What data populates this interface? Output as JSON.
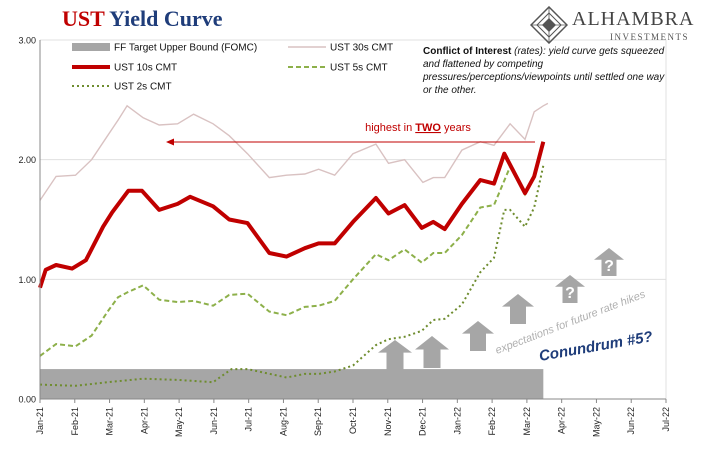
{
  "header": {
    "title_prefix": "UST",
    "title_rest": "Yield Curve",
    "logo_name": "ALHAMBRA",
    "logo_sub": "INVESTMENTS"
  },
  "annotation": {
    "lead": "Conflict of Interest",
    "paren": " (rates)",
    "body": ": yield curve gets squeezed and flattened by competing pressures/perceptions/viewpoints until settled one way or the other."
  },
  "colors": {
    "ff": "#a6a6a6",
    "ust30": "#d9c2c2",
    "ust10": "#c00000",
    "ust5": "#8db04a",
    "ust2": "#6e8c2e",
    "arrow_gray": "#a6a6a6",
    "red_annot": "#c00000",
    "navy": "#1f3d7a"
  },
  "chart_data": {
    "type": "line",
    "x_tick_labels": [
      "Jan-21",
      "Feb-21",
      "Mar-21",
      "Apr-21",
      "May-21",
      "Jun-21",
      "Jul-21",
      "Aug-21",
      "Sep-21",
      "Oct-21",
      "Nov-21",
      "Dec-21",
      "Jan-22",
      "Feb-22",
      "Mar-22",
      "Apr-22",
      "May-22",
      "Jun-22",
      "Jul-22"
    ],
    "y_tick_labels": [
      "0.00",
      "1.00",
      "2.00",
      "3.00"
    ],
    "ylim": [
      0,
      3
    ],
    "xlim": [
      "2021-01-01",
      "2022-07-01"
    ],
    "grid": true,
    "legend_position": "top-left",
    "series": [
      {
        "name": "FF Target Upper Bound (FOMC)",
        "style": "area",
        "points": [
          [
            "2021-01-01",
            0.25
          ],
          [
            "2022-03-16",
            0.25
          ]
        ]
      },
      {
        "name": "UST 30s CMT",
        "style": "line-thin",
        "points": [
          [
            "2021-01-01",
            1.66
          ],
          [
            "2021-01-15",
            1.86
          ],
          [
            "2021-02-01",
            1.87
          ],
          [
            "2021-02-15",
            2.0
          ],
          [
            "2021-03-01",
            2.2
          ],
          [
            "2021-03-10",
            2.33
          ],
          [
            "2021-03-18",
            2.45
          ],
          [
            "2021-04-01",
            2.35
          ],
          [
            "2021-04-15",
            2.29
          ],
          [
            "2021-05-01",
            2.3
          ],
          [
            "2021-05-15",
            2.38
          ],
          [
            "2021-06-01",
            2.3
          ],
          [
            "2021-06-15",
            2.2
          ],
          [
            "2021-07-01",
            2.05
          ],
          [
            "2021-07-20",
            1.85
          ],
          [
            "2021-08-04",
            1.87
          ],
          [
            "2021-08-20",
            1.88
          ],
          [
            "2021-09-01",
            1.92
          ],
          [
            "2021-09-15",
            1.87
          ],
          [
            "2021-10-01",
            2.05
          ],
          [
            "2021-10-21",
            2.13
          ],
          [
            "2021-11-01",
            1.97
          ],
          [
            "2021-11-15",
            2.0
          ],
          [
            "2021-12-01",
            1.81
          ],
          [
            "2021-12-10",
            1.85
          ],
          [
            "2021-12-20",
            1.85
          ],
          [
            "2022-01-04",
            2.08
          ],
          [
            "2022-01-20",
            2.15
          ],
          [
            "2022-02-01",
            2.12
          ],
          [
            "2022-02-15",
            2.3
          ],
          [
            "2022-02-28",
            2.17
          ],
          [
            "2022-03-08",
            2.4
          ],
          [
            "2022-03-16",
            2.45
          ],
          [
            "2022-03-20",
            2.47
          ]
        ]
      },
      {
        "name": "UST 10s CMT",
        "style": "line-thick",
        "points": [
          [
            "2021-01-01",
            0.93
          ],
          [
            "2021-01-06",
            1.08
          ],
          [
            "2021-01-15",
            1.12
          ],
          [
            "2021-01-29",
            1.09
          ],
          [
            "2021-02-10",
            1.16
          ],
          [
            "2021-02-25",
            1.44
          ],
          [
            "2021-03-05",
            1.56
          ],
          [
            "2021-03-19",
            1.74
          ],
          [
            "2021-03-31",
            1.74
          ],
          [
            "2021-04-15",
            1.58
          ],
          [
            "2021-05-01",
            1.63
          ],
          [
            "2021-05-12",
            1.69
          ],
          [
            "2021-06-01",
            1.61
          ],
          [
            "2021-06-15",
            1.5
          ],
          [
            "2021-07-01",
            1.47
          ],
          [
            "2021-07-20",
            1.22
          ],
          [
            "2021-08-04",
            1.19
          ],
          [
            "2021-08-20",
            1.26
          ],
          [
            "2021-09-01",
            1.3
          ],
          [
            "2021-09-15",
            1.3
          ],
          [
            "2021-10-01",
            1.48
          ],
          [
            "2021-10-21",
            1.68
          ],
          [
            "2021-11-01",
            1.55
          ],
          [
            "2021-11-15",
            1.62
          ],
          [
            "2021-11-30",
            1.43
          ],
          [
            "2021-12-10",
            1.48
          ],
          [
            "2021-12-20",
            1.42
          ],
          [
            "2022-01-04",
            1.63
          ],
          [
            "2022-01-20",
            1.83
          ],
          [
            "2022-02-01",
            1.8
          ],
          [
            "2022-02-10",
            2.05
          ],
          [
            "2022-02-28",
            1.72
          ],
          [
            "2022-03-08",
            1.86
          ],
          [
            "2022-03-16",
            2.15
          ]
        ]
      },
      {
        "name": "UST 5s CMT",
        "style": "dashed",
        "points": [
          [
            "2021-01-01",
            0.36
          ],
          [
            "2021-01-15",
            0.46
          ],
          [
            "2021-02-01",
            0.44
          ],
          [
            "2021-02-15",
            0.53
          ],
          [
            "2021-03-01",
            0.73
          ],
          [
            "2021-03-10",
            0.85
          ],
          [
            "2021-03-18",
            0.89
          ],
          [
            "2021-04-01",
            0.95
          ],
          [
            "2021-04-15",
            0.83
          ],
          [
            "2021-05-01",
            0.81
          ],
          [
            "2021-05-15",
            0.82
          ],
          [
            "2021-06-01",
            0.78
          ],
          [
            "2021-06-15",
            0.87
          ],
          [
            "2021-07-01",
            0.88
          ],
          [
            "2021-07-20",
            0.73
          ],
          [
            "2021-08-04",
            0.7
          ],
          [
            "2021-08-20",
            0.77
          ],
          [
            "2021-09-01",
            0.78
          ],
          [
            "2021-09-15",
            0.82
          ],
          [
            "2021-10-01",
            1.0
          ],
          [
            "2021-10-21",
            1.21
          ],
          [
            "2021-11-01",
            1.16
          ],
          [
            "2021-11-15",
            1.25
          ],
          [
            "2021-11-30",
            1.14
          ],
          [
            "2021-12-10",
            1.22
          ],
          [
            "2021-12-20",
            1.22
          ],
          [
            "2022-01-04",
            1.37
          ],
          [
            "2022-01-20",
            1.6
          ],
          [
            "2022-02-01",
            1.62
          ],
          [
            "2022-02-15",
            1.94
          ],
          [
            "2022-02-28",
            1.71
          ],
          [
            "2022-03-08",
            1.85
          ],
          [
            "2022-03-16",
            2.15
          ]
        ]
      },
      {
        "name": "UST 2s CMT",
        "style": "dotted",
        "points": [
          [
            "2021-01-01",
            0.12
          ],
          [
            "2021-02-01",
            0.11
          ],
          [
            "2021-03-01",
            0.14
          ],
          [
            "2021-04-01",
            0.17
          ],
          [
            "2021-05-01",
            0.16
          ],
          [
            "2021-06-01",
            0.14
          ],
          [
            "2021-06-17",
            0.25
          ],
          [
            "2021-07-01",
            0.25
          ],
          [
            "2021-08-04",
            0.18
          ],
          [
            "2021-08-20",
            0.21
          ],
          [
            "2021-09-01",
            0.21
          ],
          [
            "2021-09-15",
            0.23
          ],
          [
            "2021-10-01",
            0.28
          ],
          [
            "2021-10-21",
            0.45
          ],
          [
            "2021-11-01",
            0.5
          ],
          [
            "2021-11-15",
            0.52
          ],
          [
            "2021-11-30",
            0.57
          ],
          [
            "2021-12-10",
            0.66
          ],
          [
            "2021-12-20",
            0.67
          ],
          [
            "2022-01-04",
            0.79
          ],
          [
            "2022-01-20",
            1.06
          ],
          [
            "2022-02-01",
            1.18
          ],
          [
            "2022-02-10",
            1.58
          ],
          [
            "2022-02-15",
            1.58
          ],
          [
            "2022-02-28",
            1.44
          ],
          [
            "2022-03-08",
            1.6
          ],
          [
            "2022-03-16",
            1.95
          ]
        ]
      }
    ],
    "annotations": {
      "highest_prefix": "highest in ",
      "highest_emph": "TWO",
      "highest_suffix": " years",
      "expectations": "expectations for future rate hikes",
      "conundrum": "Conundrum #5?",
      "question_mark": "?"
    }
  }
}
